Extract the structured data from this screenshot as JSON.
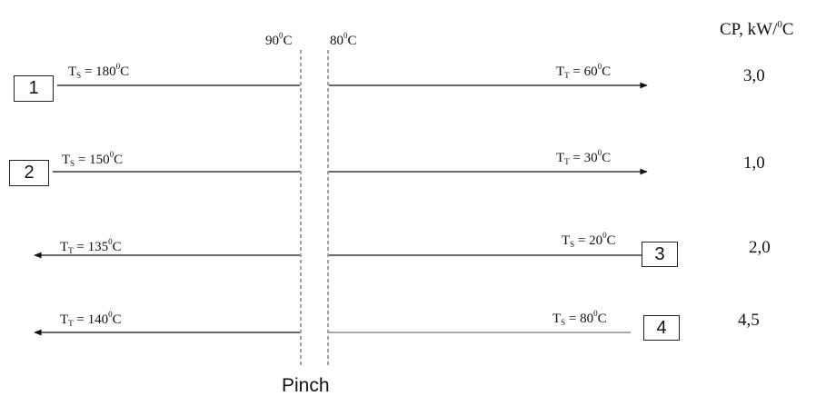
{
  "pinch_label": "Pinch",
  "cp_header": {
    "text": "CP, kW/",
    "deg": "0",
    "unit": "C"
  },
  "pinch_temps": {
    "hot": {
      "value": "90",
      "deg": "0",
      "unit": "C"
    },
    "cold": {
      "value": "80",
      "deg": "0",
      "unit": "C"
    }
  },
  "streams": [
    {
      "id": "1",
      "cp": "3,0",
      "left_label": {
        "sym": "T",
        "sub": "S",
        "value": "180",
        "deg": "0",
        "unit": "C"
      },
      "right_label": {
        "sym": "T",
        "sub": "T",
        "value": "60",
        "deg": "0",
        "unit": "C"
      }
    },
    {
      "id": "2",
      "cp": "1,0",
      "left_label": {
        "sym": "T",
        "sub": "S",
        "value": "150",
        "deg": "0",
        "unit": "C"
      },
      "right_label": {
        "sym": "T",
        "sub": "T",
        "value": "30",
        "deg": "0",
        "unit": "C"
      }
    },
    {
      "id": "3",
      "cp": "2,0",
      "left_label": {
        "sym": "T",
        "sub": "T",
        "value": "135",
        "deg": "0",
        "unit": "C"
      },
      "right_label": {
        "sym": "T",
        "sub": "S",
        "value": "20",
        "deg": "0",
        "unit": "C"
      }
    },
    {
      "id": "4",
      "cp": "4,5",
      "left_label": {
        "sym": "T",
        "sub": "T",
        "value": "140",
        "deg": "0",
        "unit": "C"
      },
      "right_label": {
        "sym": "T",
        "sub": "S",
        "value": "80",
        "deg": "0",
        "unit": "C"
      }
    }
  ],
  "colors": {
    "line": "#111111",
    "pinch_line": "#444444"
  }
}
